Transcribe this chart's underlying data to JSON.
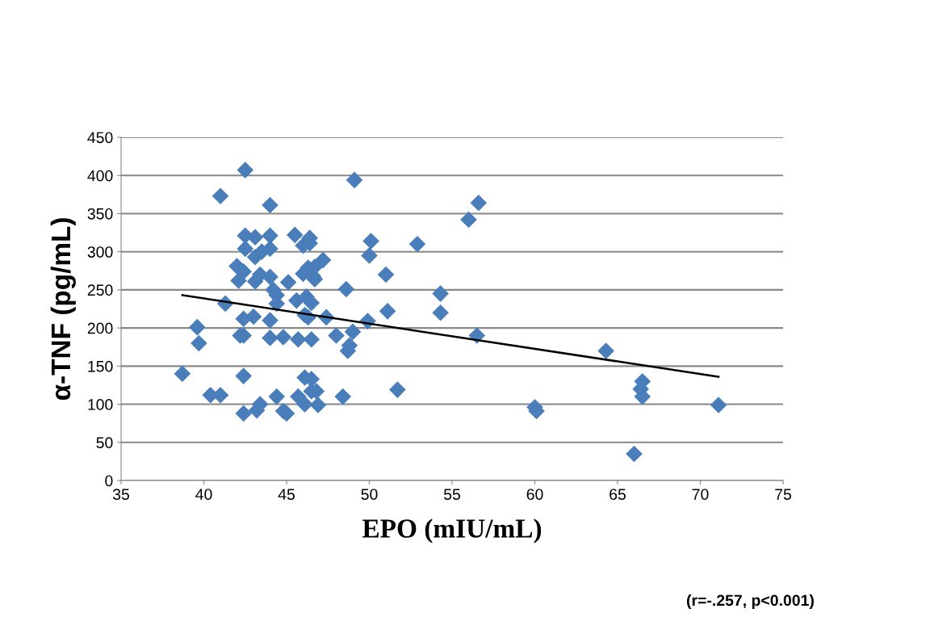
{
  "chart_data": {
    "type": "scatter",
    "xlabel": "EPO (mIU/mL)",
    "ylabel": "α-TNF (pg/mL)",
    "xlim": [
      35,
      75
    ],
    "xticks": [
      35,
      40,
      45,
      50,
      55,
      60,
      65,
      70,
      75
    ],
    "ylim": [
      0,
      450
    ],
    "yticks": [
      0,
      50,
      100,
      150,
      200,
      250,
      300,
      350,
      400,
      450
    ],
    "grid": "y",
    "legend": false,
    "annotations": [
      "(r=-.257, p<0.001)"
    ],
    "series": [
      {
        "marker": "diamond",
        "color": "#4a7ebb",
        "x": [
          38.7,
          39.6,
          39.7,
          40.4,
          41.0,
          41.0,
          41.3,
          42.0,
          42.1,
          42.2,
          42.4,
          42.4,
          42.4,
          42.4,
          42.4,
          42.5,
          42.5,
          42.5,
          43.0,
          43.1,
          43.1,
          43.1,
          43.2,
          43.4,
          43.4,
          43.5,
          44.0,
          44.0,
          44.0,
          44.0,
          44.0,
          44.0,
          44.2,
          44.4,
          44.4,
          44.4,
          44.8,
          44.8,
          45.1,
          45.0,
          45.5,
          45.6,
          45.7,
          45.7,
          46.0,
          46.0,
          46.1,
          46.1,
          46.1,
          46.2,
          46.3,
          46.3,
          46.4,
          46.4,
          46.5,
          46.5,
          46.5,
          46.5,
          46.6,
          46.7,
          46.7,
          46.8,
          46.9,
          47.2,
          47.4,
          48.0,
          48.4,
          48.6,
          48.7,
          48.8,
          49.0,
          49.1,
          49.9,
          50.0,
          50.1,
          51.0,
          51.1,
          51.7,
          52.9,
          54.3,
          54.3,
          56.0,
          56.5,
          56.6,
          60.0,
          60.1,
          64.3,
          66.0,
          66.5,
          66.4,
          66.5,
          71.1
        ],
        "values": [
          140,
          201,
          180,
          112,
          112,
          373,
          232,
          281,
          262,
          190,
          274,
          212,
          190,
          137,
          88,
          407,
          321,
          304,
          215,
          319,
          293,
          261,
          92,
          100,
          270,
          300,
          361,
          321,
          304,
          267,
          210,
          187,
          250,
          243,
          232,
          110,
          188,
          91,
          260,
          88,
          322,
          236,
          185,
          110,
          271,
          308,
          217,
          135,
          100,
          241,
          279,
          214,
          318,
          311,
          233,
          185,
          133,
          117,
          268,
          280,
          264,
          117,
          99,
          289,
          214,
          190,
          110,
          251,
          170,
          177,
          195,
          394,
          209,
          295,
          314,
          270,
          222,
          119,
          310,
          245,
          220,
          342,
          190,
          364,
          96,
          91,
          170,
          35,
          130,
          120,
          110,
          99
        ]
      },
      {
        "type": "line",
        "marker": "none",
        "color": "#000000",
        "line_style": "solid",
        "x": [
          38.7,
          71.1
        ],
        "values": [
          243,
          136
        ]
      }
    ]
  }
}
